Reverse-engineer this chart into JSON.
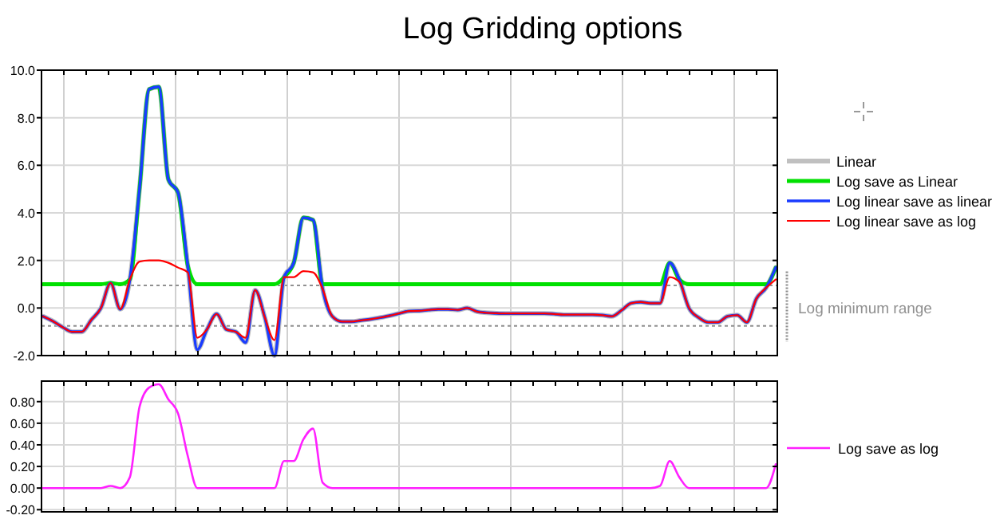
{
  "chart_data": [
    {
      "type": "line",
      "title": "Log Gridding options",
      "categories": [
        null,
        null,
        null,
        null,
        null,
        null,
        null,
        null,
        null,
        null,
        null,
        null,
        null,
        null,
        null,
        null,
        null,
        null,
        null,
        null,
        null,
        null,
        null,
        null,
        null,
        null,
        null,
        null,
        null,
        null,
        null,
        null,
        null,
        null,
        null,
        null,
        null,
        null,
        null,
        null,
        null,
        null,
        null,
        null,
        null,
        null,
        null,
        null,
        null,
        null,
        null,
        null,
        null,
        null,
        null,
        null,
        null,
        null,
        null,
        null,
        null,
        null,
        null,
        null,
        null,
        null,
        null,
        null,
        null,
        null,
        null,
        null,
        null,
        null,
        null,
        null,
        null
      ],
      "series": [
        {
          "name": "Linear",
          "color": "#c0c0c0",
          "values": [
            -0.35,
            -0.55,
            -0.8,
            -1.0,
            -1.0,
            -0.5,
            0,
            1.05,
            -0.05,
            1.2,
            5.0,
            9.2,
            9.3,
            5.4,
            4.85,
            1.8,
            -1.75,
            -0.9,
            -0.25,
            -0.9,
            -1.0,
            -1.45,
            0.75,
            -0.4,
            -2.0,
            1.3,
            1.9,
            3.8,
            3.7,
            0.8,
            -0.35,
            -0.57,
            -0.57,
            -0.52,
            -0.47,
            -0.4,
            -0.32,
            -0.22,
            -0.13,
            -0.12,
            -0.08,
            -0.05,
            -0.05,
            -0.08,
            0.0,
            -0.15,
            -0.2,
            -0.22,
            -0.23,
            -0.23,
            -0.23,
            -0.23,
            -0.23,
            -0.25,
            -0.28,
            -0.28,
            -0.28,
            -0.28,
            -0.3,
            -0.35,
            -0.1,
            0.2,
            0.25,
            0.2,
            0.2,
            1.9,
            1.2,
            0.0,
            -0.4,
            -0.6,
            -0.6,
            -0.35,
            -0.3,
            -0.6,
            0.4,
            0.85,
            1.7
          ]
        },
        {
          "name": "Log save as Linear",
          "color": "#00e000",
          "values": [
            1,
            1,
            1,
            1,
            1,
            1,
            1,
            1.05,
            1,
            1.2,
            5.0,
            9.2,
            9.3,
            5.4,
            4.85,
            1.8,
            1,
            1,
            1,
            1,
            1,
            1,
            1,
            1,
            1,
            1.3,
            1.9,
            3.8,
            3.7,
            1,
            1,
            1,
            1,
            1,
            1,
            1,
            1,
            1,
            1,
            1,
            1,
            1,
            1,
            1,
            1,
            1,
            1,
            1,
            1,
            1,
            1,
            1,
            1,
            1,
            1,
            1,
            1,
            1,
            1,
            1,
            1,
            1,
            1,
            1,
            1,
            1.9,
            1.2,
            1,
            1,
            1,
            1,
            1,
            1,
            1,
            1,
            1,
            1.7
          ]
        },
        {
          "name": "Log linear save as linear",
          "color": "#1a3cff",
          "values": [
            -0.35,
            -0.55,
            -0.8,
            -1.0,
            -1.0,
            -0.5,
            0,
            1.05,
            -0.05,
            1.2,
            5.0,
            9.2,
            9.3,
            5.4,
            4.85,
            1.8,
            -1.75,
            -0.9,
            -0.25,
            -0.9,
            -1.0,
            -1.45,
            0.75,
            -0.4,
            -2.0,
            1.3,
            1.9,
            3.8,
            3.7,
            0.8,
            -0.35,
            -0.57,
            -0.57,
            -0.52,
            -0.47,
            -0.4,
            -0.32,
            -0.22,
            -0.13,
            -0.12,
            -0.08,
            -0.05,
            -0.05,
            -0.08,
            0.0,
            -0.15,
            -0.2,
            -0.22,
            -0.23,
            -0.23,
            -0.23,
            -0.23,
            -0.23,
            -0.25,
            -0.28,
            -0.28,
            -0.28,
            -0.28,
            -0.3,
            -0.35,
            -0.1,
            0.2,
            0.25,
            0.2,
            0.2,
            1.9,
            1.2,
            0.0,
            -0.4,
            -0.6,
            -0.6,
            -0.35,
            -0.3,
            -0.6,
            0.4,
            0.85,
            1.7
          ]
        },
        {
          "name": "Log linear save as log",
          "color": "#ff0000",
          "values": [
            -0.35,
            -0.55,
            -0.8,
            -1.0,
            -1.0,
            -0.5,
            0,
            1.05,
            -0.05,
            1.2,
            1.95,
            2.0,
            2.0,
            1.9,
            1.7,
            1.5,
            -1.25,
            -0.9,
            -0.25,
            -0.9,
            -1.0,
            -1.25,
            0.75,
            -0.4,
            -1.35,
            1.3,
            1.3,
            1.55,
            1.5,
            0.8,
            -0.35,
            -0.57,
            -0.57,
            -0.52,
            -0.47,
            -0.4,
            -0.32,
            -0.22,
            -0.13,
            -0.12,
            -0.08,
            -0.05,
            -0.05,
            -0.08,
            0.0,
            -0.15,
            -0.2,
            -0.22,
            -0.23,
            -0.23,
            -0.23,
            -0.23,
            -0.23,
            -0.25,
            -0.28,
            -0.28,
            -0.28,
            -0.28,
            -0.3,
            -0.35,
            -0.1,
            0.2,
            0.25,
            0.2,
            0.2,
            1.3,
            1.1,
            0.0,
            -0.4,
            -0.6,
            -0.6,
            -0.35,
            -0.3,
            -0.6,
            0.4,
            0.85,
            1.2
          ]
        }
      ],
      "ylim": [
        -2,
        10
      ],
      "yticks": [
        {
          "value": 10,
          "label": "10.0"
        },
        {
          "value": 8,
          "label": "8.0"
        },
        {
          "value": 6,
          "label": "6.0"
        },
        {
          "value": 4,
          "label": "4.0"
        },
        {
          "value": 2,
          "label": "2.0"
        },
        {
          "value": 0,
          "label": "0.0"
        },
        {
          "value": -2,
          "label": "-2.0"
        }
      ],
      "ref_lines": [
        {
          "axis": "y",
          "value": 0.95,
          "color": "#909090",
          "line_style": "dashed"
        },
        {
          "axis": "y",
          "value": -0.75,
          "label": "Log minimum range",
          "color": "#909090",
          "line_style": "dashed"
        }
      ],
      "grid": true,
      "legend": "right",
      "tick_labels": "y"
    },
    {
      "type": "line",
      "categories": [
        null,
        null,
        null,
        null,
        null,
        null,
        null,
        null,
        null,
        null,
        null,
        null,
        null,
        null,
        null,
        null,
        null,
        null,
        null,
        null,
        null,
        null,
        null,
        null,
        null,
        null,
        null,
        null,
        null,
        null,
        null,
        null,
        null,
        null,
        null,
        null,
        null,
        null,
        null,
        null,
        null,
        null,
        null,
        null,
        null,
        null,
        null,
        null,
        null,
        null,
        null,
        null,
        null,
        null,
        null,
        null,
        null,
        null,
        null,
        null,
        null,
        null,
        null,
        null,
        null,
        null,
        null,
        null,
        null,
        null,
        null,
        null,
        null,
        null,
        null,
        null,
        null
      ],
      "series": [
        {
          "name": "Log save as log",
          "color": "#ff20ff",
          "values": [
            0,
            0,
            0,
            0,
            0,
            0,
            0,
            0.02,
            0,
            0.1,
            0.75,
            0.93,
            0.96,
            0.82,
            0.69,
            0.3,
            0,
            0,
            0,
            0,
            0,
            0,
            0,
            0,
            0,
            0.25,
            0.25,
            0.45,
            0.55,
            0.05,
            0,
            0,
            0,
            0,
            0,
            0,
            0,
            0,
            0,
            0,
            0,
            0,
            0,
            0,
            0,
            0,
            0,
            0,
            0,
            0,
            0,
            0,
            0,
            0,
            0,
            0,
            0,
            0,
            0,
            0,
            0,
            0,
            0,
            0,
            0.02,
            0.25,
            0.1,
            0,
            0,
            0,
            0,
            0,
            0,
            0,
            0,
            0,
            0.22
          ]
        }
      ],
      "ylim": [
        -0.22,
        0.99
      ],
      "yticks": [
        {
          "value": 0.8,
          "label": "0.80"
        },
        {
          "value": 0.6,
          "label": "0.60"
        },
        {
          "value": 0.4,
          "label": "0.40"
        },
        {
          "value": 0.2,
          "label": "0.20"
        },
        {
          "value": 0,
          "label": "0.00"
        },
        {
          "value": -0.2,
          "label": "-0.20"
        }
      ],
      "grid": true,
      "legend": "right",
      "tick_labels": "y"
    }
  ]
}
